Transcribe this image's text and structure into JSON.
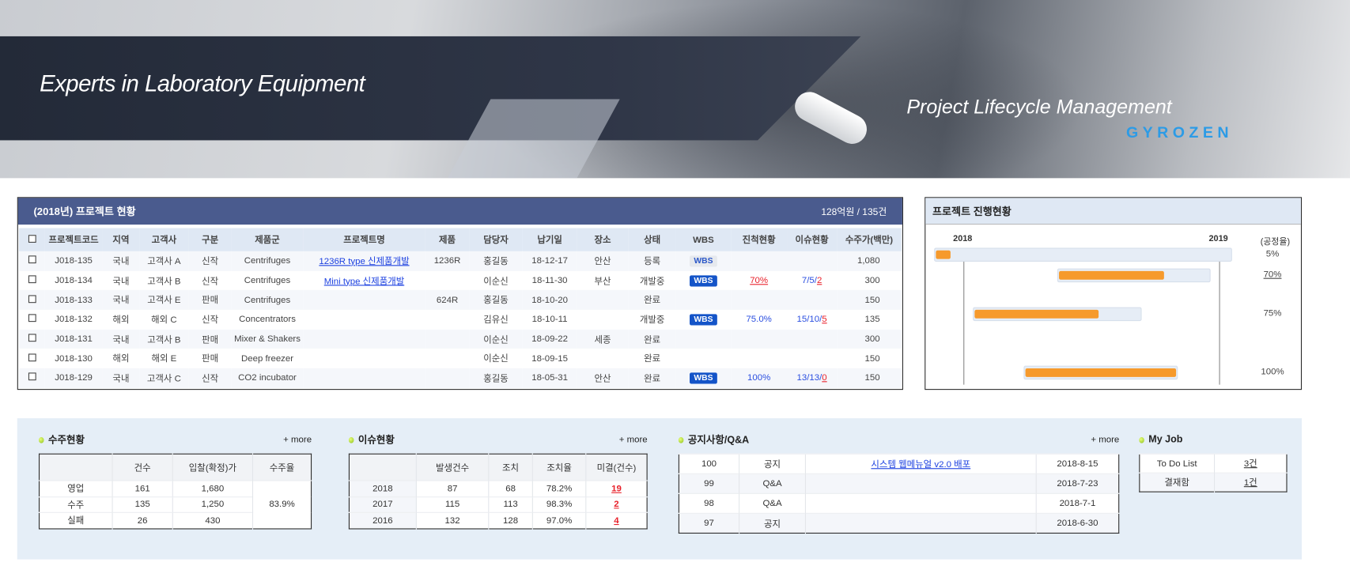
{
  "banner": {
    "slogan": "Experts in Laboratory Equipment",
    "product": "Project Lifecycle Management",
    "logo": "GYROZEN"
  },
  "colors": {
    "title_bar": "#4a5b8e",
    "header_bg": "#dfe8f4",
    "gantt_fill": "#f69a2c",
    "wbs_active": "#1454c8",
    "alert_red": "#e8202a",
    "link_blue": "#1a3fe0"
  },
  "projects": {
    "title": "(2018년) 프로젝트 현황",
    "summary": "128억원 / 135건",
    "columns": [
      "프로젝트코드",
      "지역",
      "고객사",
      "구분",
      "제품군",
      "프로젝트명",
      "제품",
      "담당자",
      "납기일",
      "장소",
      "상태",
      "WBS",
      "진척현황",
      "이슈현황",
      "수주가(백만)"
    ],
    "rows": [
      {
        "code": "J018-135",
        "region": "국내",
        "customer": "고객사 A",
        "type": "신작",
        "group": "Centrifuges",
        "name": "1236R type 신제품개발",
        "product": "1236R",
        "manager": "홍길동",
        "due": "18-12-17",
        "place": "안산",
        "status": "등록",
        "wbs": "WBS",
        "wbs_active": false,
        "progress": "",
        "progress_red": false,
        "issue_prefix": "",
        "issue_open": "",
        "amount": "1,080"
      },
      {
        "code": "J018-134",
        "region": "국내",
        "customer": "고객사 B",
        "type": "신작",
        "group": "Centrifuges",
        "name": "Mini type 신제품개발",
        "product": "",
        "manager": "이순신",
        "due": "18-11-30",
        "place": "부산",
        "status": "개발중",
        "wbs": "WBS",
        "wbs_active": true,
        "progress": "70%",
        "progress_red": true,
        "issue_prefix": "7/5/",
        "issue_open": "2",
        "amount": "300"
      },
      {
        "code": "J018-133",
        "region": "국내",
        "customer": "고객사 E",
        "type": "판매",
        "group": "Centrifuges",
        "name": "",
        "product": "624R",
        "manager": "홍길동",
        "due": "18-10-20",
        "place": "",
        "status": "완료",
        "wbs": "",
        "wbs_active": false,
        "progress": "",
        "progress_red": false,
        "issue_prefix": "",
        "issue_open": "",
        "amount": "150"
      },
      {
        "code": "J018-132",
        "region": "해외",
        "customer": "해외 C",
        "type": "신작",
        "group": "Concentrators",
        "name": "",
        "product": "",
        "manager": "김유신",
        "due": "18-10-11",
        "place": "",
        "status": "개발중",
        "wbs": "WBS",
        "wbs_active": true,
        "progress": "75.0%",
        "progress_red": false,
        "issue_prefix": "15/10/",
        "issue_open": "5",
        "amount": "135"
      },
      {
        "code": "J018-131",
        "region": "국내",
        "customer": "고객사 B",
        "type": "판매",
        "group": "Mixer & Shakers",
        "name": "",
        "product": "",
        "manager": "이순신",
        "due": "18-09-22",
        "place": "세종",
        "status": "완료",
        "wbs": "",
        "wbs_active": false,
        "progress": "",
        "progress_red": false,
        "issue_prefix": "",
        "issue_open": "",
        "amount": "300"
      },
      {
        "code": "J018-130",
        "region": "해외",
        "customer": "해외 E",
        "type": "판매",
        "group": "Deep freezer",
        "name": "",
        "product": "",
        "manager": "이순신",
        "due": "18-09-15",
        "place": "",
        "status": "완료",
        "wbs": "",
        "wbs_active": false,
        "progress": "",
        "progress_red": false,
        "issue_prefix": "",
        "issue_open": "",
        "amount": "150"
      },
      {
        "code": "J018-129",
        "region": "국내",
        "customer": "고객사 C",
        "type": "신작",
        "group": "CO2 incubator",
        "name": "",
        "product": "",
        "manager": "홍길동",
        "due": "18-05-31",
        "place": "안산",
        "status": "완료",
        "wbs": "WBS",
        "wbs_active": true,
        "progress": "100%",
        "progress_red": false,
        "issue_prefix": "13/13/",
        "issue_open": "0",
        "amount": "150"
      }
    ]
  },
  "gantt": {
    "title": "프로젝트 진행현황",
    "years": [
      "2018",
      "2019"
    ],
    "rate_label": "(공정율)",
    "rows": [
      {
        "start": "2017-11-20",
        "end": "2019-01-20",
        "progress": 5,
        "label": "5%",
        "red": false
      },
      {
        "start": "2018-05-15",
        "end": "2018-12-20",
        "progress": 70,
        "label": "70%",
        "red": true
      },
      null,
      {
        "start": "2018-01-15",
        "end": "2018-09-13",
        "progress": 75,
        "label": "75%",
        "red": false
      },
      null,
      null,
      {
        "start": "2018-03-28",
        "end": "2018-11-03",
        "progress": 100,
        "label": "100%",
        "red": false
      }
    ]
  },
  "orders": {
    "title": "수주현황",
    "more": "+ more",
    "columns": [
      "",
      "건수",
      "입찰(확정)가",
      "수주율"
    ],
    "rows": [
      [
        "영업",
        "161",
        "1,680"
      ],
      [
        "수주",
        "135",
        "1,250"
      ],
      [
        "실패",
        "26",
        "430"
      ]
    ],
    "rate": "83.9%"
  },
  "issues": {
    "title": "이슈현황",
    "more": "+ more",
    "columns": [
      "",
      "발생건수",
      "조치",
      "조치율",
      "미결(건수)"
    ],
    "rows": [
      [
        "2018",
        "87",
        "68",
        "78.2%",
        "19"
      ],
      [
        "2017",
        "115",
        "113",
        "98.3%",
        "2"
      ],
      [
        "2016",
        "132",
        "128",
        "97.0%",
        "4"
      ]
    ]
  },
  "notices": {
    "title": "공지사항/Q&A",
    "more": "+ more",
    "rows": [
      [
        "100",
        "공지",
        "시스템 웹메뉴얼 v2.0 배포",
        "2018-8-15"
      ],
      [
        "99",
        "Q&A",
        "",
        "2018-7-23"
      ],
      [
        "98",
        "Q&A",
        "",
        "2018-7-1"
      ],
      [
        "97",
        "공지",
        "",
        "2018-6-30"
      ]
    ]
  },
  "myjob": {
    "title": "My Job",
    "rows": [
      [
        "To Do List",
        "3건"
      ],
      [
        "결재함",
        "1건"
      ]
    ]
  }
}
